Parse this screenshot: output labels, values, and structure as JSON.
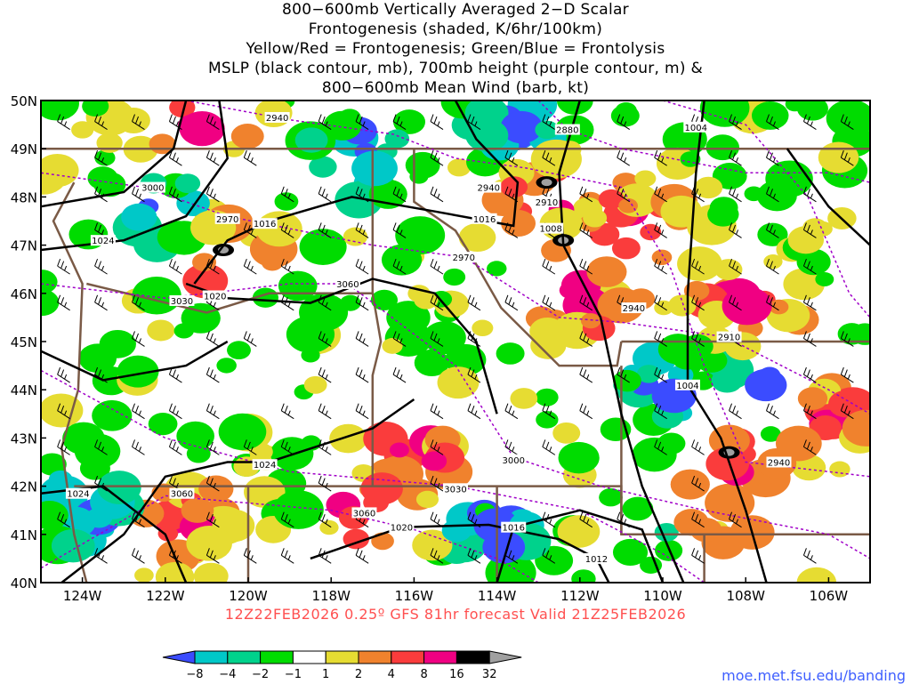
{
  "title_lines": [
    "800−600mb Vertically Averaged 2−D Scalar",
    "Frontogenesis (shaded, K/6hr/100km)",
    "Yellow/Red = Frontogenesis;  Green/Blue = Frontolysis",
    "MSLP (black contour, mb), 700mb height (purple contour, m) &",
    "800−600mb Mean Wind (barb, kt)"
  ],
  "subtitle": "12Z22FEB2026 0.25º GFS 81hr forecast Valid 21Z25FEB2026",
  "credit": "moe.met.fsu.edu/banding",
  "map": {
    "lon_range": [
      -125,
      -105
    ],
    "lat_range": [
      40,
      50
    ],
    "lon_labels": [
      "124W",
      "122W",
      "120W",
      "118W",
      "116W",
      "114W",
      "112W",
      "110W",
      "108W",
      "106W"
    ],
    "lon_values": [
      -124,
      -122,
      -120,
      -118,
      -116,
      -114,
      -112,
      -110,
      -108,
      -106
    ],
    "lat_labels": [
      "40N",
      "41N",
      "42N",
      "43N",
      "44N",
      "45N",
      "46N",
      "47N",
      "48N",
      "49N",
      "50N"
    ],
    "lat_values": [
      40,
      41,
      42,
      43,
      44,
      45,
      46,
      47,
      48,
      49,
      50
    ],
    "mslp_labels": [
      {
        "text": "1024",
        "lon": -123.5,
        "lat": 47.1
      },
      {
        "text": "1016",
        "lon": -119.6,
        "lat": 47.45
      },
      {
        "text": "1020",
        "lon": -120.8,
        "lat": 45.95
      },
      {
        "text": "1016",
        "lon": -114.3,
        "lat": 47.55
      },
      {
        "text": "1008",
        "lon": -112.7,
        "lat": 47.35
      },
      {
        "text": "1004",
        "lon": -109.2,
        "lat": 49.45
      },
      {
        "text": "1004",
        "lon": -109.4,
        "lat": 44.1
      },
      {
        "text": "1024",
        "lon": -119.6,
        "lat": 42.45
      },
      {
        "text": "1024",
        "lon": -124.1,
        "lat": 41.85
      },
      {
        "text": "1020",
        "lon": -116.3,
        "lat": 41.15
      },
      {
        "text": "1016",
        "lon": -113.6,
        "lat": 41.15
      },
      {
        "text": "1012",
        "lon": -111.6,
        "lat": 40.5
      }
    ],
    "height_labels": [
      {
        "text": "2940",
        "lon": -119.3,
        "lat": 49.65
      },
      {
        "text": "2880",
        "lon": -112.3,
        "lat": 49.4
      },
      {
        "text": "3000",
        "lon": -122.3,
        "lat": 48.2
      },
      {
        "text": "2970",
        "lon": -120.5,
        "lat": 47.55
      },
      {
        "text": "2940",
        "lon": -114.2,
        "lat": 48.2
      },
      {
        "text": "2910",
        "lon": -112.8,
        "lat": 47.9
      },
      {
        "text": "2970",
        "lon": -114.8,
        "lat": 46.75
      },
      {
        "text": "3060",
        "lon": -117.6,
        "lat": 46.2
      },
      {
        "text": "3030",
        "lon": -121.6,
        "lat": 45.85
      },
      {
        "text": "2940",
        "lon": -110.7,
        "lat": 45.7
      },
      {
        "text": "2910",
        "lon": -108.4,
        "lat": 45.1
      },
      {
        "text": "3000",
        "lon": -113.6,
        "lat": 42.55
      },
      {
        "text": "3030",
        "lon": -115.0,
        "lat": 41.95
      },
      {
        "text": "3060",
        "lon": -121.6,
        "lat": 41.85
      },
      {
        "text": "3060",
        "lon": -117.2,
        "lat": 41.45
      },
      {
        "text": "2940",
        "lon": -107.2,
        "lat": 42.5
      }
    ]
  },
  "colorbar": {
    "labels": [
      "−8",
      "−4",
      "−2",
      "−1",
      "1",
      "2",
      "4",
      "8",
      "16",
      "32"
    ],
    "colors": [
      "#3b4cff",
      "#00c8c8",
      "#00d28c",
      "#00dc00",
      "#ffffff",
      "#e6dc32",
      "#f0822d",
      "#fa3c3c",
      "#f00082",
      "#000000",
      "#a0a0a0"
    ]
  },
  "colors": {
    "mslp": "#000000",
    "height": "#a000c8",
    "borders": "#7a5a46",
    "subtitle": "#ff5050"
  }
}
